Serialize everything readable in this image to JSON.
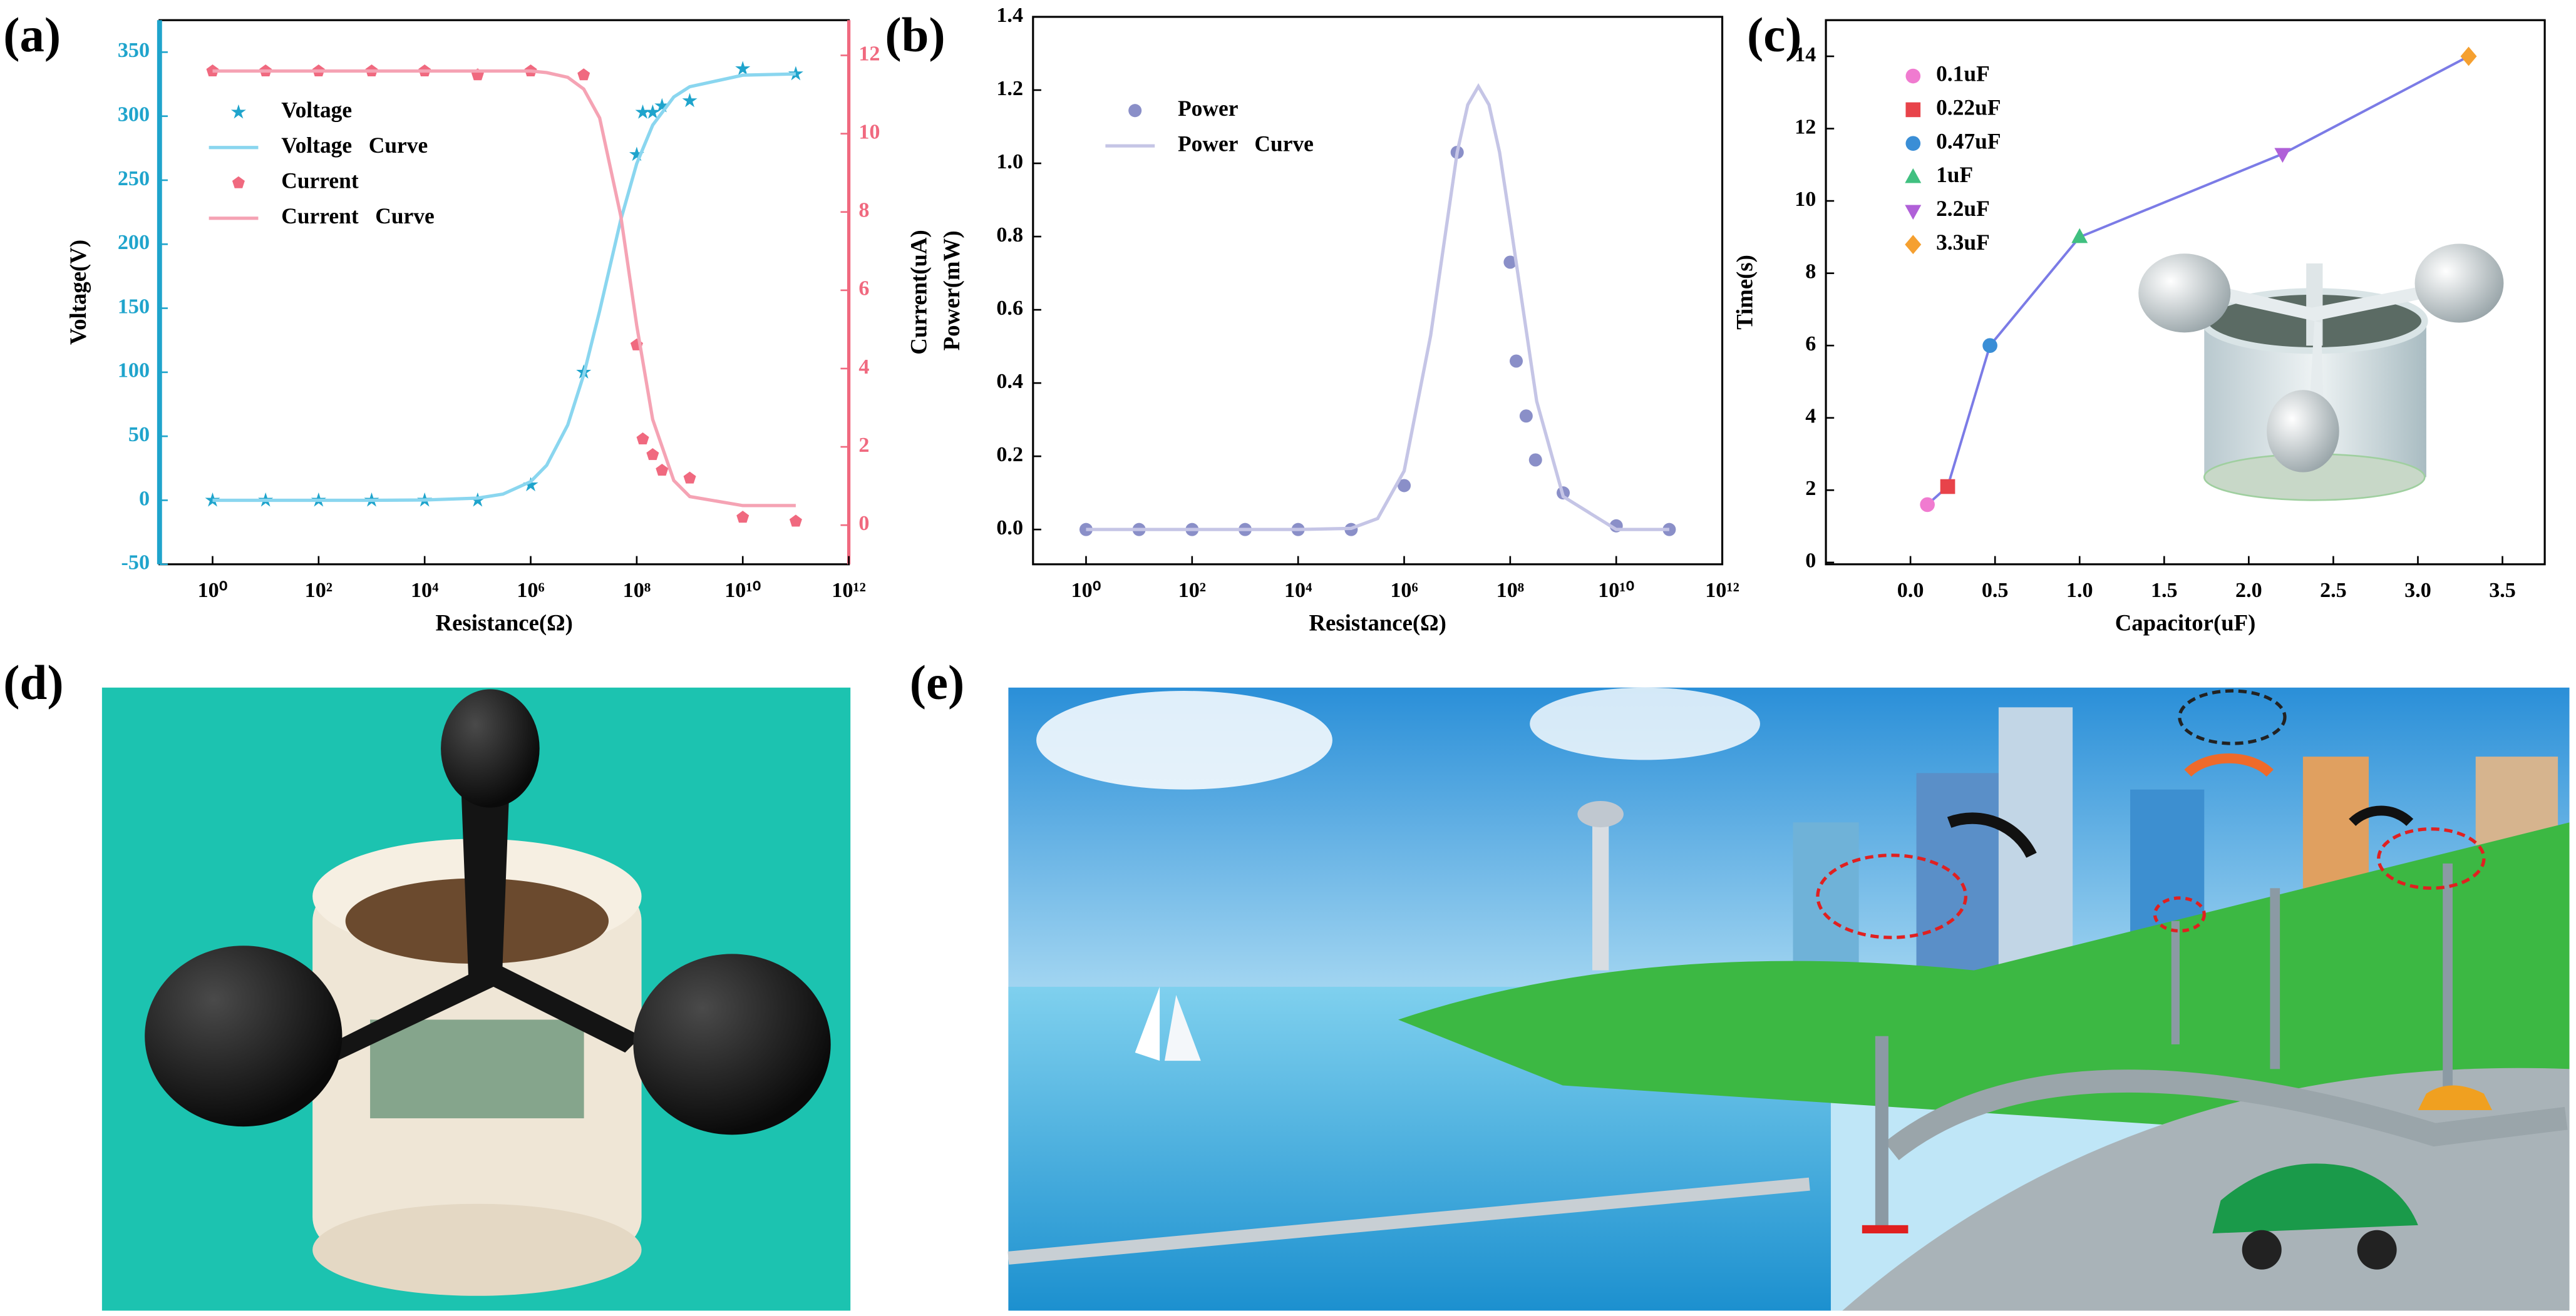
{
  "panel_labels": [
    "(a)",
    "(b)",
    "(c)",
    "(d)",
    "(e)"
  ],
  "chart_data": [
    {
      "type": "scatter",
      "xlabel": "Resistance(Ω)",
      "ylabel": "Voltage(V)",
      "y2label": "Current(uA)",
      "xscale": "log",
      "xlim": [
        0.1,
        1000000000000.0
      ],
      "xticks": [
        {
          "value": 1,
          "label": "10⁰"
        },
        {
          "value": 100,
          "label": "10²"
        },
        {
          "value": 10000,
          "label": "10⁴"
        },
        {
          "value": 1000000,
          "label": "10⁶"
        },
        {
          "value": 100000000,
          "label": "10⁸"
        },
        {
          "value": 10000000000,
          "label": "10¹⁰"
        },
        {
          "value": 1000000000000,
          "label": "10¹²"
        }
      ],
      "ylim": [
        -50,
        375
      ],
      "yticks": [
        -50,
        0,
        50,
        100,
        150,
        200,
        250,
        300,
        350
      ],
      "y2lim": [
        -1,
        12.9
      ],
      "y2ticks": [
        0,
        2,
        4,
        6,
        8,
        10,
        12
      ],
      "y_axis_color": "#1fa4cc",
      "y2_axis_color": "#f0697f",
      "legend": "upper left",
      "series": [
        {
          "name": "Voltage",
          "color": "#1fa4cc",
          "marker": "star",
          "x": [
            1,
            10,
            100,
            1000,
            10000,
            100000,
            1000000,
            10000000,
            100000000,
            130000000,
            200000000,
            300000000,
            1000000000,
            10000000000,
            100000000000
          ],
          "values": [
            0,
            0,
            0,
            0,
            0,
            0,
            12,
            100,
            270,
            303,
            303,
            308,
            312,
            337,
            333
          ]
        },
        {
          "name": "Voltage   Curve",
          "color": "#8ad6ef",
          "type": "line",
          "x": [
            1,
            10,
            100,
            1000,
            10000,
            100000,
            300000,
            1000000,
            2000000,
            5000000,
            10000000,
            20000000,
            50000000,
            100000000,
            200000000,
            500000000,
            1000000000,
            10000000000,
            100000000000
          ],
          "values": [
            0,
            0,
            0,
            0,
            0.2,
            1.7,
            4.8,
            14.6,
            27.3,
            58.8,
            98,
            148,
            219,
            263,
            293,
            315,
            323,
            332,
            333
          ]
        },
        {
          "name": "Current",
          "color": "#f0697f",
          "marker": "pentagon",
          "axis": "y2",
          "x": [
            1,
            10,
            100,
            1000,
            10000,
            100000,
            1000000,
            10000000,
            100000000,
            130000000,
            200000000,
            300000000,
            1000000000,
            10000000000,
            100000000000
          ],
          "values": [
            11.6,
            11.6,
            11.6,
            11.6,
            11.6,
            11.5,
            11.6,
            11.5,
            4.6,
            2.2,
            1.8,
            1.4,
            1.2,
            0.2,
            0.1
          ]
        },
        {
          "name": "Current   Curve",
          "color": "#f5a3b4",
          "type": "line",
          "axis": "y2",
          "x": [
            1,
            10,
            100,
            1000,
            10000,
            100000,
            300000,
            1000000,
            2000000,
            5000000,
            10000000,
            20000000,
            50000000,
            100000000,
            200000000,
            500000000,
            1000000000,
            10000000000,
            100000000000
          ],
          "values": [
            11.6,
            11.6,
            11.6,
            11.6,
            11.6,
            11.6,
            11.6,
            11.6,
            11.56,
            11.44,
            11.14,
            10.4,
            7.9,
            5.1,
            2.7,
            1.14,
            0.73,
            0.5,
            0.5
          ]
        }
      ]
    },
    {
      "type": "scatter",
      "xlabel": "Resistance(Ω)",
      "ylabel": "Power(mW)",
      "xscale": "log",
      "xlim": [
        0.1,
        1000000000000.0
      ],
      "xticks": [
        {
          "value": 1,
          "label": "10⁰"
        },
        {
          "value": 100,
          "label": "10²"
        },
        {
          "value": 10000,
          "label": "10⁴"
        },
        {
          "value": 1000000,
          "label": "10⁶"
        },
        {
          "value": 100000000,
          "label": "10⁸"
        },
        {
          "value": 10000000000,
          "label": "10¹⁰"
        },
        {
          "value": 1000000000000,
          "label": "10¹²"
        }
      ],
      "ylim": [
        -0.095,
        1.4
      ],
      "yticks": [
        {
          "value": 0,
          "label": "0.0"
        },
        0.2,
        0.4,
        0.6,
        0.8,
        {
          "value": 1,
          "label": "1.0"
        },
        1.2,
        1.4
      ],
      "legend": "upper left",
      "series": [
        {
          "name": "Power",
          "color": "#8a8fc8",
          "marker": "circle",
          "x": [
            1,
            10,
            100,
            1000,
            10000,
            100000,
            1000000,
            10000000,
            100000000,
            130000000,
            200000000,
            300000000,
            1000000000,
            10000000000,
            100000000000
          ],
          "values": [
            0,
            0,
            0,
            0,
            0,
            0,
            0.12,
            1.03,
            0.73,
            0.46,
            0.31,
            0.19,
            0.1,
            0.01,
            0
          ]
        },
        {
          "name": "Power   Curve",
          "color": "#c5c5e6",
          "type": "line",
          "x": [
            1,
            10,
            100,
            1000,
            10000,
            100000,
            316228,
            1000000,
            3162278,
            10000000,
            15850000,
            25120000,
            39810000,
            63100000,
            100000000,
            316200000,
            1000000000,
            10000000000,
            100000000000
          ],
          "values": [
            0,
            0,
            0,
            0,
            0,
            0.003,
            0.03,
            0.16,
            0.53,
            1.03,
            1.16,
            1.21,
            1.16,
            1.03,
            0.84,
            0.35,
            0.09,
            0,
            0
          ]
        }
      ]
    },
    {
      "type": "line",
      "xlabel": "Capacitor(uF)",
      "ylabel": "Time(s)",
      "xlim": [
        -0.5,
        3.75
      ],
      "xticks": [
        {
          "value": 0,
          "label": "0.0"
        },
        0.5,
        {
          "value": 1,
          "label": "1.0"
        },
        1.5,
        {
          "value": 2,
          "label": "2.0"
        },
        2.5,
        {
          "value": 3,
          "label": "3.0"
        },
        3.5
      ],
      "ylim": [
        -0.05,
        15
      ],
      "yticks": [
        0,
        2,
        4,
        6,
        8,
        10,
        12,
        14
      ],
      "legend": "upper left",
      "line_color": "#7b7be6",
      "x": [
        0.1,
        0.22,
        0.47,
        1,
        2.2,
        3.3
      ],
      "values": [
        1.6,
        2.1,
        6.0,
        9.0,
        11.3,
        14.0
      ],
      "point_labels": [
        "0.1uF",
        "0.22uF",
        "0.47uF",
        "1uF",
        "2.2uF",
        "3.3uF"
      ],
      "point_colors": [
        "#f07bd0",
        "#e8434a",
        "#3a8ed6",
        "#40c080",
        "#b060d8",
        "#f5a030"
      ],
      "markers": [
        "circle",
        "square",
        "circle",
        "triangle",
        "triangle-down",
        "diamond"
      ]
    }
  ]
}
